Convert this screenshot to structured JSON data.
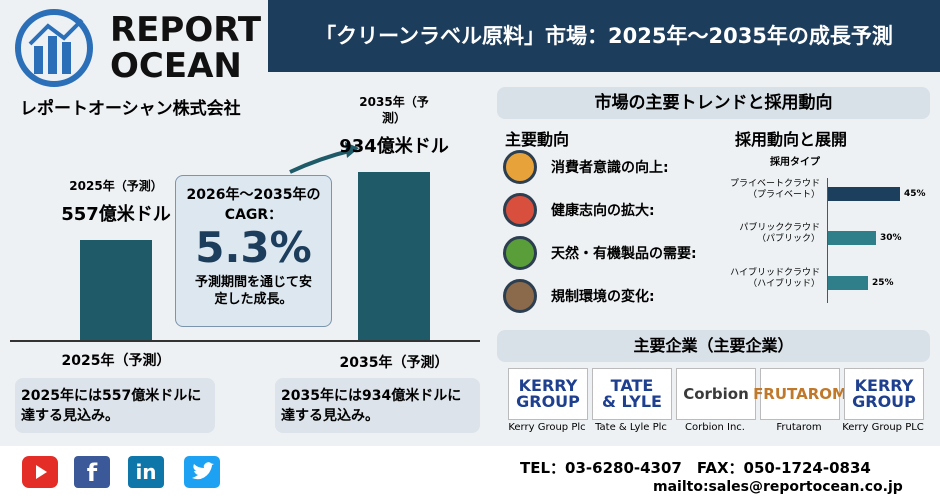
{
  "header": {
    "logo_line1": "REPORT",
    "logo_line2": "OCEAN",
    "company": "レポートオーシャン株式会社",
    "title": "「クリーンラベル原料」市場：2025年～2035年の成長予測"
  },
  "chart_data": [
    {
      "type": "bar",
      "categories": [
        "2025年（予測）",
        "2035年（予測）"
      ],
      "values": [
        557,
        934
      ],
      "value_labels": [
        "557億米ドル",
        "934億米ドル"
      ],
      "color": "#1f5a68"
    },
    {
      "type": "hbar",
      "title": "採用タイプ",
      "categories": [
        "プライベートクラウド\n（プライベート）",
        "パブリッククラウド\n（パブリック）",
        "ハイブリッドクラウド\n（ハイブリッド）"
      ],
      "values": [
        45,
        30,
        25
      ],
      "value_labels": [
        "45%",
        "30%",
        "25%"
      ],
      "colors": [
        "#1c3f5e",
        "#2e7f8a",
        "#2e7f8a"
      ]
    }
  ],
  "cagr": {
    "label": "2026年～2035年のCAGR：",
    "value": "5.3%",
    "note": "予測期間を通じて安定した成長。"
  },
  "notes": [
    "2025年には557億米ドルに達する見込み。",
    "2035年には934億米ドルに達する見込み。"
  ],
  "trends": {
    "title": "市場の主要トレンドと採用動向",
    "left_title": "主要動向",
    "right_title": "採用動向と展開",
    "items": [
      "消費者意識の向上:",
      "健康志向の拡大:",
      "天然・有機製品の需要:",
      "規制環境の変化:"
    ]
  },
  "companies": {
    "title": "主要企業（主要企業）",
    "items": [
      {
        "logo": [
          "KERRY",
          "GROUP"
        ],
        "name": "Kerry Group Plc"
      },
      {
        "logo": [
          "TATE",
          "& LYLE"
        ],
        "name": "Tate & Lyle Plc"
      },
      {
        "logo": [
          "Corbion"
        ],
        "name": "Corbion Inc."
      },
      {
        "logo": [
          "FRUTAROM"
        ],
        "name": "Frutarom"
      },
      {
        "logo": [
          "KERRY",
          "GROUP"
        ],
        "name": "Kerry Group PLC"
      }
    ]
  },
  "footer": {
    "social": [
      "f",
      "in"
    ],
    "tel": "TEL：03-6280-4307　FAX：050-1724-0834",
    "mail": "mailto:sales@reportocean.co.jp"
  }
}
